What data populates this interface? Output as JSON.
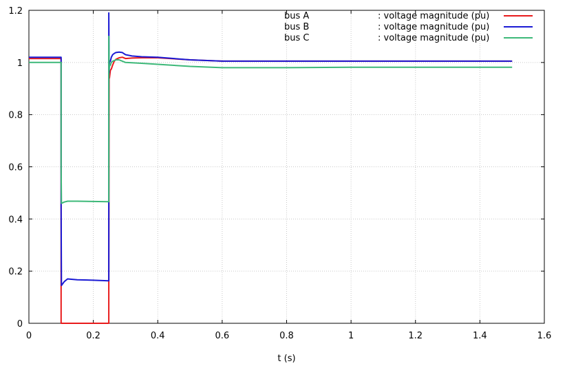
{
  "chart_data": {
    "type": "line",
    "xlabel": "t (s)",
    "ylabel": "",
    "title": "",
    "xlim": [
      0,
      1.6
    ],
    "ylim": [
      0,
      1.2
    ],
    "xticks": [
      "0",
      "0.2",
      "0.4",
      "0.6",
      "0.8",
      "1",
      "1.2",
      "1.4",
      "1.6"
    ],
    "yticks": [
      "0",
      "0.2",
      "0.4",
      "0.6",
      "0.8",
      "1",
      "1.2"
    ],
    "grid": true,
    "legend_position": "top-right",
    "series": [
      {
        "name": "bus A",
        "desc": ": voltage magnitude (pu)",
        "color": "#e8191a",
        "x": [
          0,
          0.1,
          0.1,
          0.1,
          0.102,
          0.248,
          0.248,
          0.249,
          0.25,
          0.253,
          0.256,
          0.26,
          0.265,
          0.27,
          0.28,
          0.29,
          0.3,
          0.32,
          0.35,
          0.4,
          0.5,
          0.6,
          0.8,
          1.0,
          1.2,
          1.5
        ],
        "y": [
          1.015,
          1.015,
          0.1,
          0.0,
          0.0,
          0.0,
          0.16,
          0.95,
          0.94,
          0.97,
          0.975,
          0.99,
          1.005,
          1.012,
          1.018,
          1.02,
          1.015,
          1.017,
          1.018,
          1.018,
          1.01,
          1.005,
          1.005,
          1.005,
          1.005,
          1.005
        ]
      },
      {
        "name": "bus B",
        "desc": ": voltage magnitude (pu)",
        "color": "#1a1ad4",
        "x": [
          0,
          0.1,
          0.1,
          0.101,
          0.11,
          0.12,
          0.15,
          0.2,
          0.248,
          0.248,
          0.249,
          0.25,
          0.253,
          0.256,
          0.26,
          0.265,
          0.27,
          0.28,
          0.29,
          0.3,
          0.32,
          0.35,
          0.4,
          0.5,
          0.6,
          0.8,
          1.0,
          1.2,
          1.5
        ],
        "y": [
          1.02,
          1.02,
          0.45,
          0.145,
          0.16,
          0.17,
          0.167,
          0.165,
          0.163,
          1.19,
          0.96,
          1.0,
          1.005,
          1.02,
          1.03,
          1.035,
          1.038,
          1.04,
          1.038,
          1.03,
          1.025,
          1.022,
          1.02,
          1.01,
          1.005,
          1.005,
          1.005,
          1.005,
          1.005
        ]
      },
      {
        "name": "bus C",
        "desc": ": voltage magnitude (pu)",
        "color": "#3cb878",
        "x": [
          0,
          0.1,
          0.1,
          0.101,
          0.11,
          0.12,
          0.15,
          0.2,
          0.248,
          0.248,
          0.249,
          0.25,
          0.253,
          0.256,
          0.26,
          0.27,
          0.28,
          0.29,
          0.3,
          0.35,
          0.4,
          0.5,
          0.6,
          0.8,
          1.0,
          1.2,
          1.5
        ],
        "y": [
          1.0,
          1.0,
          0.6,
          0.46,
          0.465,
          0.468,
          0.468,
          0.467,
          0.466,
          1.1,
          0.97,
          0.985,
          0.99,
          1.0,
          1.005,
          1.01,
          1.01,
          1.005,
          1.0,
          0.997,
          0.993,
          0.985,
          0.98,
          0.98,
          0.982,
          0.982,
          0.982
        ]
      }
    ]
  }
}
